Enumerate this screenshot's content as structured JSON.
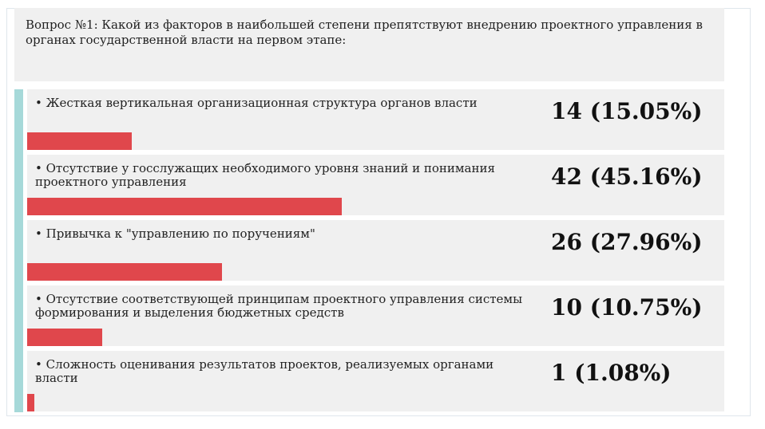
{
  "question": {
    "text": "Вопрос №1: Какой из факторов в наибольшей степени препятствуют внедрению проектного управления в органах государственной власти на первом этапе:"
  },
  "colors": {
    "bar": "#e0474c",
    "accent": "#a6d9d9",
    "row_background": "#f0f0f0"
  },
  "chart_data": {
    "type": "bar",
    "orientation": "horizontal",
    "title": "Вопрос №1: Какой из факторов в наибольшей степени препятствуют внедрению проектного управления в органах государственной власти на первом этапе:",
    "categories": [
      "• Жесткая вертикальная организационная структура органов власти",
      "• Отсутствие у госслужащих необходимого уровня знаний и понимания проектного управления",
      "• Привычка к \"управлению по поручениям\"",
      "• Отсутствие соответствующей принципам проектного управления системы формирования и выделения бюджетных средств",
      "• Сложность оценивания результатов проектов, реализуемых органами власти"
    ],
    "values": [
      14,
      42,
      26,
      10,
      1
    ],
    "percents": [
      15.05,
      45.16,
      27.96,
      10.75,
      1.08
    ],
    "value_labels": [
      "14 (15.05%)",
      "42 (45.16%)",
      "26 (27.96%)",
      "10 (10.75%)",
      "1 (1.08%)"
    ],
    "xlim": [
      0,
      100
    ],
    "grid": false
  }
}
